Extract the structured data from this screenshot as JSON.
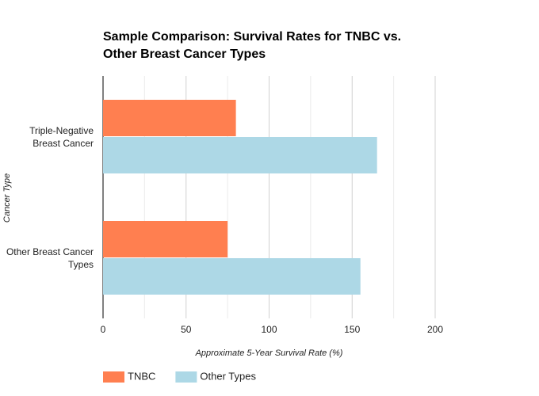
{
  "chart_data": {
    "type": "hbar",
    "title": "Sample Comparison: Survival Rates for TNBC vs. Other Breast Cancer Types",
    "x_label": "Approximate 5-Year Survival Rate (%)",
    "y_label": "Cancer Type",
    "categories": [
      "Triple-Negative Breast Cancer",
      "Other Breast Cancer Types"
    ],
    "series": [
      {
        "name": "TNBC",
        "color": "#ff7f50",
        "values": [
          80,
          75
        ]
      },
      {
        "name": "Other Types",
        "color": "#add8e6",
        "values": [
          165,
          155
        ]
      }
    ],
    "xlim": [
      0,
      200
    ],
    "xticks": [
      0,
      50,
      100,
      150,
      200
    ],
    "minor_xticks": [
      25,
      75,
      125,
      175
    ],
    "grid": true,
    "legend": "bottom"
  }
}
